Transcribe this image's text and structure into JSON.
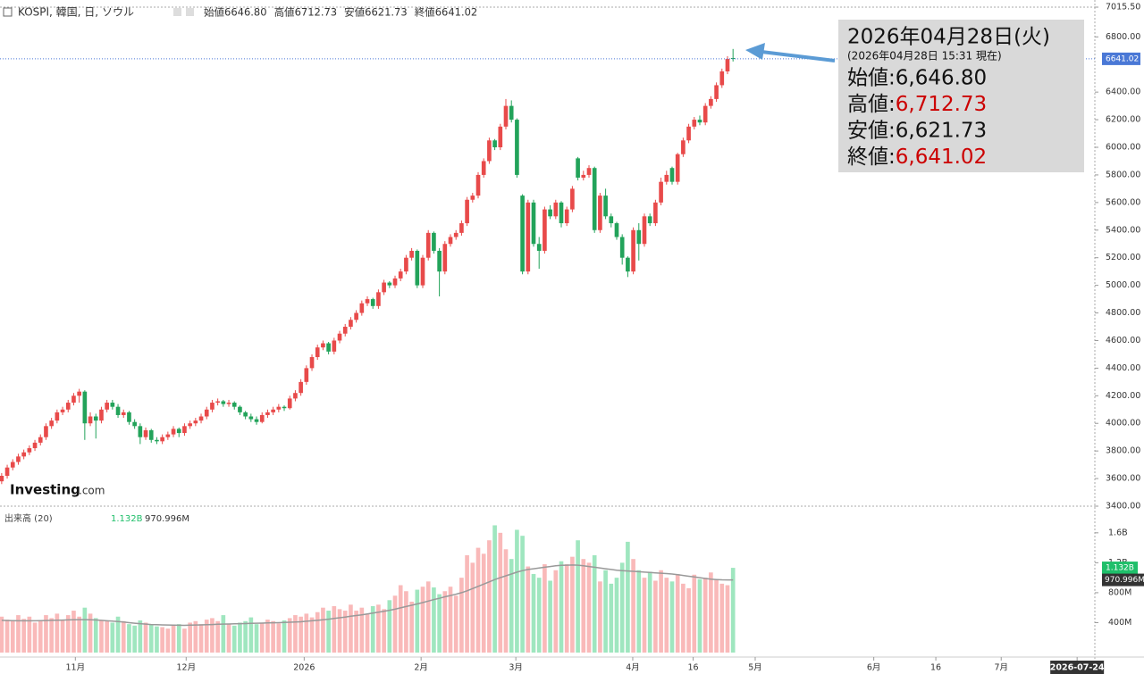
{
  "chart_data": {
    "type": "candlestick",
    "title": "KOSPI, 韓国, 日, ソウル",
    "header_items": [
      {
        "label": "始値",
        "value": "6646.80"
      },
      {
        "label": "高値",
        "value": "6712.73"
      },
      {
        "label": "安値",
        "value": "6621.73"
      },
      {
        "label": "終値",
        "value": "6641.02"
      }
    ],
    "logo": {
      "main": "Investing",
      "suffix": ".com"
    },
    "up_color": "#e84a4a",
    "down_color": "#22a35a",
    "last_label": "6641.02",
    "last_color": "#4a78d6",
    "xlim": [
      -0.3,
      197.3
    ],
    "xticks": [
      {
        "value": 13.3,
        "label": "11月"
      },
      {
        "value": 33.3,
        "label": "12月"
      },
      {
        "value": 54.6,
        "label": "2026"
      },
      {
        "value": 75.7,
        "label": "2月"
      },
      {
        "value": 92.8,
        "label": "3月"
      },
      {
        "value": 113.9,
        "label": "4月"
      },
      {
        "value": 124.8,
        "label": "16"
      },
      {
        "value": 136.0,
        "label": "5月"
      },
      {
        "value": 157.4,
        "label": "6月"
      },
      {
        "value": 168.6,
        "label": "16"
      },
      {
        "value": 180.4,
        "label": "7月"
      },
      {
        "value": 194.1,
        "label": "2026-07-24"
      }
    ],
    "ylim": [
      3400,
      7015.5
    ],
    "yticks": [
      {
        "value": 3400,
        "label": "3400.00"
      },
      {
        "value": 3600,
        "label": "3600.00"
      },
      {
        "value": 3800,
        "label": "3800.00"
      },
      {
        "value": 4000,
        "label": "4000.00"
      },
      {
        "value": 4200,
        "label": "4200.00"
      },
      {
        "value": 4400,
        "label": "4400.00"
      },
      {
        "value": 4600,
        "label": "4600.00"
      },
      {
        "value": 4800,
        "label": "4800.00"
      },
      {
        "value": 5000,
        "label": "5000.00"
      },
      {
        "value": 5200,
        "label": "5200.00"
      },
      {
        "value": 5400,
        "label": "5400.00"
      },
      {
        "value": 5600,
        "label": "5600.00"
      },
      {
        "value": 5800,
        "label": "5800.00"
      },
      {
        "value": 6000,
        "label": "6000.00"
      },
      {
        "value": 6200,
        "label": "6200.00"
      },
      {
        "value": 6400,
        "label": "6400.00"
      },
      {
        "value": 6800,
        "label": "6800.00"
      },
      {
        "value": 7015.5,
        "label": "7015.50"
      }
    ],
    "candles": [
      [
        3580,
        3640,
        3560,
        3620
      ],
      [
        3620,
        3700,
        3600,
        3680
      ],
      [
        3680,
        3740,
        3660,
        3720
      ],
      [
        3720,
        3780,
        3700,
        3760
      ],
      [
        3760,
        3810,
        3740,
        3790
      ],
      [
        3790,
        3840,
        3770,
        3820
      ],
      [
        3820,
        3880,
        3800,
        3860
      ],
      [
        3860,
        3920,
        3840,
        3900
      ],
      [
        3900,
        4000,
        3880,
        3980
      ],
      [
        3980,
        4040,
        3960,
        4020
      ],
      [
        4020,
        4100,
        4000,
        4080
      ],
      [
        4080,
        4120,
        4060,
        4100
      ],
      [
        4100,
        4170,
        4080,
        4150
      ],
      [
        4150,
        4220,
        4130,
        4200
      ],
      [
        4200,
        4250,
        4150,
        4230
      ],
      [
        4230,
        4240,
        3880,
        4000
      ],
      [
        4000,
        4080,
        3980,
        4050
      ],
      [
        4050,
        4070,
        3890,
        4020
      ],
      [
        4020,
        4120,
        4000,
        4100
      ],
      [
        4100,
        4170,
        4080,
        4150
      ],
      [
        4150,
        4170,
        4100,
        4120
      ],
      [
        4120,
        4140,
        4040,
        4060
      ],
      [
        4060,
        4100,
        4040,
        4080
      ],
      [
        4080,
        4090,
        3990,
        4010
      ],
      [
        4010,
        4030,
        3960,
        3980
      ],
      [
        3980,
        4000,
        3850,
        3900
      ],
      [
        3900,
        3970,
        3880,
        3950
      ],
      [
        3950,
        3960,
        3860,
        3880
      ],
      [
        3880,
        3900,
        3850,
        3870
      ],
      [
        3870,
        3920,
        3850,
        3900
      ],
      [
        3900,
        3940,
        3880,
        3920
      ],
      [
        3920,
        3980,
        3900,
        3960
      ],
      [
        3960,
        3970,
        3900,
        3930
      ],
      [
        3930,
        4000,
        3910,
        3980
      ],
      [
        3980,
        4020,
        3960,
        4000
      ],
      [
        4000,
        4040,
        3980,
        4020
      ],
      [
        4020,
        4070,
        4000,
        4050
      ],
      [
        4050,
        4120,
        4030,
        4100
      ],
      [
        4100,
        4170,
        4080,
        4150
      ],
      [
        4150,
        4180,
        4130,
        4160
      ],
      [
        4160,
        4170,
        4120,
        4140
      ],
      [
        4140,
        4170,
        4120,
        4150
      ],
      [
        4150,
        4160,
        4100,
        4120
      ],
      [
        4120,
        4130,
        4060,
        4080
      ],
      [
        4080,
        4090,
        4030,
        4050
      ],
      [
        4050,
        4070,
        4010,
        4030
      ],
      [
        4030,
        4050,
        3990,
        4010
      ],
      [
        4010,
        4080,
        4000,
        4060
      ],
      [
        4060,
        4100,
        4040,
        4080
      ],
      [
        4080,
        4120,
        4060,
        4100
      ],
      [
        4100,
        4140,
        4080,
        4120
      ],
      [
        4120,
        4130,
        4090,
        4110
      ],
      [
        4110,
        4200,
        4100,
        4180
      ],
      [
        4180,
        4240,
        4160,
        4220
      ],
      [
        4220,
        4320,
        4200,
        4300
      ],
      [
        4300,
        4420,
        4280,
        4400
      ],
      [
        4400,
        4500,
        4380,
        4480
      ],
      [
        4480,
        4570,
        4460,
        4550
      ],
      [
        4550,
        4600,
        4530,
        4580
      ],
      [
        4580,
        4590,
        4500,
        4520
      ],
      [
        4520,
        4620,
        4500,
        4600
      ],
      [
        4600,
        4670,
        4580,
        4650
      ],
      [
        4650,
        4720,
        4630,
        4700
      ],
      [
        4700,
        4770,
        4680,
        4750
      ],
      [
        4750,
        4820,
        4730,
        4800
      ],
      [
        4800,
        4890,
        4780,
        4870
      ],
      [
        4870,
        4920,
        4850,
        4900
      ],
      [
        4900,
        4910,
        4830,
        4850
      ],
      [
        4850,
        4970,
        4830,
        4950
      ],
      [
        4950,
        5040,
        4930,
        5020
      ],
      [
        5020,
        5030,
        4980,
        5000
      ],
      [
        5000,
        5070,
        4980,
        5050
      ],
      [
        5050,
        5120,
        5030,
        5100
      ],
      [
        5100,
        5220,
        5080,
        5200
      ],
      [
        5200,
        5270,
        5180,
        5250
      ],
      [
        5250,
        5260,
        4980,
        5000
      ],
      [
        5000,
        5220,
        4980,
        5200
      ],
      [
        5200,
        5400,
        5180,
        5380
      ],
      [
        5380,
        5390,
        5230,
        5250
      ],
      [
        5250,
        5270,
        4920,
        5100
      ],
      [
        5100,
        5320,
        5080,
        5300
      ],
      [
        5300,
        5370,
        5280,
        5350
      ],
      [
        5350,
        5400,
        5330,
        5380
      ],
      [
        5380,
        5470,
        5360,
        5450
      ],
      [
        5450,
        5640,
        5430,
        5620
      ],
      [
        5620,
        5670,
        5600,
        5650
      ],
      [
        5650,
        5820,
        5630,
        5800
      ],
      [
        5800,
        5920,
        5780,
        5900
      ],
      [
        5900,
        6070,
        5880,
        6050
      ],
      [
        6050,
        6060,
        5980,
        6000
      ],
      [
        6000,
        6170,
        5980,
        6150
      ],
      [
        6150,
        6350,
        6130,
        6300
      ],
      [
        6300,
        6340,
        6180,
        6200
      ],
      [
        6200,
        6210,
        5780,
        5800
      ],
      [
        5650,
        5660,
        5080,
        5100
      ],
      [
        5100,
        5620,
        5080,
        5600
      ],
      [
        5600,
        5620,
        5280,
        5300
      ],
      [
        5300,
        5350,
        5120,
        5250
      ],
      [
        5250,
        5570,
        5230,
        5550
      ],
      [
        5550,
        5580,
        5480,
        5500
      ],
      [
        5500,
        5620,
        5480,
        5600
      ],
      [
        5600,
        5610,
        5420,
        5450
      ],
      [
        5450,
        5570,
        5430,
        5550
      ],
      [
        5550,
        5720,
        5530,
        5700
      ],
      [
        5920,
        5930,
        5760,
        5780
      ],
      [
        5780,
        5830,
        5760,
        5800
      ],
      [
        5800,
        5870,
        5780,
        5850
      ],
      [
        5850,
        5860,
        5380,
        5400
      ],
      [
        5400,
        5670,
        5380,
        5650
      ],
      [
        5650,
        5700,
        5480,
        5500
      ],
      [
        5500,
        5520,
        5420,
        5450
      ],
      [
        5450,
        5460,
        5330,
        5350
      ],
      [
        5350,
        5370,
        5150,
        5200
      ],
      [
        5200,
        5210,
        5060,
        5100
      ],
      [
        5100,
        5420,
        5080,
        5400
      ],
      [
        5400,
        5450,
        5180,
        5300
      ],
      [
        5300,
        5520,
        5280,
        5500
      ],
      [
        5500,
        5520,
        5430,
        5450
      ],
      [
        5450,
        5620,
        5430,
        5600
      ],
      [
        5600,
        5780,
        5580,
        5750
      ],
      [
        5750,
        5830,
        5730,
        5800
      ],
      [
        5850,
        5860,
        5730,
        5750
      ],
      [
        5750,
        5960,
        5730,
        5950
      ],
      [
        5950,
        6070,
        5930,
        6050
      ],
      [
        6050,
        6170,
        6030,
        6150
      ],
      [
        6150,
        6220,
        6130,
        6200
      ],
      [
        6200,
        6230,
        6160,
        6180
      ],
      [
        6180,
        6320,
        6160,
        6300
      ],
      [
        6300,
        6370,
        6280,
        6350
      ],
      [
        6350,
        6470,
        6330,
        6450
      ],
      [
        6450,
        6570,
        6430,
        6550
      ],
      [
        6550,
        6660,
        6530,
        6640
      ],
      [
        6646.8,
        6712.73,
        6621.73,
        6641.02
      ]
    ],
    "volume": {
      "title": "出来高 (20)",
      "up_color": "#f9b9b9",
      "down_color": "#9fe6bf",
      "ylim": [
        0,
        1920
      ],
      "yticks": [
        {
          "value": 400,
          "label": "400M"
        },
        {
          "value": 800,
          "label": "800M"
        },
        {
          "value": 1200,
          "label": "1.2B"
        },
        {
          "value": 1600,
          "label": "1.6B"
        }
      ],
      "values": [
        480,
        440,
        420,
        500,
        450,
        480,
        400,
        420,
        500,
        460,
        520,
        430,
        500,
        560,
        480,
        600,
        520,
        460,
        430,
        420,
        400,
        480,
        420,
        380,
        360,
        430,
        400,
        380,
        350,
        340,
        320,
        360,
        380,
        320,
        400,
        420,
        380,
        440,
        460,
        420,
        500,
        380,
        360,
        400,
        420,
        470,
        380,
        400,
        440,
        420,
        390,
        430,
        460,
        500,
        480,
        520,
        470,
        540,
        600,
        560,
        620,
        580,
        560,
        640,
        560,
        600,
        520,
        620,
        640,
        580,
        700,
        760,
        900,
        820,
        680,
        840,
        880,
        950,
        870,
        780,
        820,
        880,
        760,
        1000,
        1300,
        1200,
        1400,
        1320,
        1500,
        1700,
        1600,
        1380,
        1250,
        1640,
        1560,
        1150,
        1050,
        1000,
        1180,
        960,
        1100,
        1220,
        1180,
        1280,
        1500,
        1250,
        1200,
        1300,
        950,
        1100,
        920,
        1000,
        1200,
        1480,
        1250,
        1100,
        1000,
        1080,
        960,
        1100,
        1000,
        950,
        1050,
        920,
        860,
        1040,
        980,
        1000,
        1070,
        980,
        920,
        900,
        1132
      ],
      "last_label": "1.132B",
      "last_color": "#1fbf6a",
      "ma": {
        "color": "#999999",
        "label_color": "#333333",
        "values": [
          430,
          428,
          426,
          425,
          424,
          424,
          425,
          426,
          428,
          430,
          432,
          434,
          436,
          438,
          440,
          440,
          438,
          435,
          430,
          425,
          420,
          414,
          408,
          400,
          392,
          386,
          380,
          375,
          372,
          370,
          368,
          366,
          365,
          364,
          366,
          368,
          370,
          372,
          375,
          378,
          380,
          382,
          384,
          386,
          388,
          390,
          392,
          394,
          396,
          398,
          400,
          402,
          405,
          408,
          412,
          418,
          424,
          430,
          438,
          446,
          455,
          465,
          475,
          485,
          495,
          505,
          515,
          527,
          540,
          552,
          565,
          580,
          598,
          615,
          632,
          650,
          668,
          688,
          708,
          725,
          745,
          762,
          780,
          800,
          825,
          855,
          885,
          915,
          945,
          975,
          1000,
          1025,
          1050,
          1075,
          1095,
          1110,
          1120,
          1130,
          1140,
          1150,
          1160,
          1165,
          1168,
          1170,
          1168,
          1160,
          1150,
          1140,
          1130,
          1120,
          1110,
          1100,
          1095,
          1090,
          1085,
          1080,
          1075,
          1070,
          1065,
          1060,
          1055,
          1050,
          1040,
          1030,
          1020,
          1010,
          1000,
          990,
          980,
          975,
          972,
          971,
          970.996
        ],
        "last_label": "970.996M"
      }
    },
    "info": {
      "date": "2026年04月28日(火)",
      "asof": "(2026年04月28日 15:31 現在)",
      "rows": [
        {
          "label": "始値:",
          "value": "6,646.80",
          "color": "#111111"
        },
        {
          "label": "高値:",
          "value": "6,712.73",
          "color": "#cc0000"
        },
        {
          "label": "安値:",
          "value": "6,621.73",
          "color": "#111111"
        },
        {
          "label": "終値:",
          "value": "6,641.02",
          "color": "#cc0000"
        }
      ]
    }
  }
}
